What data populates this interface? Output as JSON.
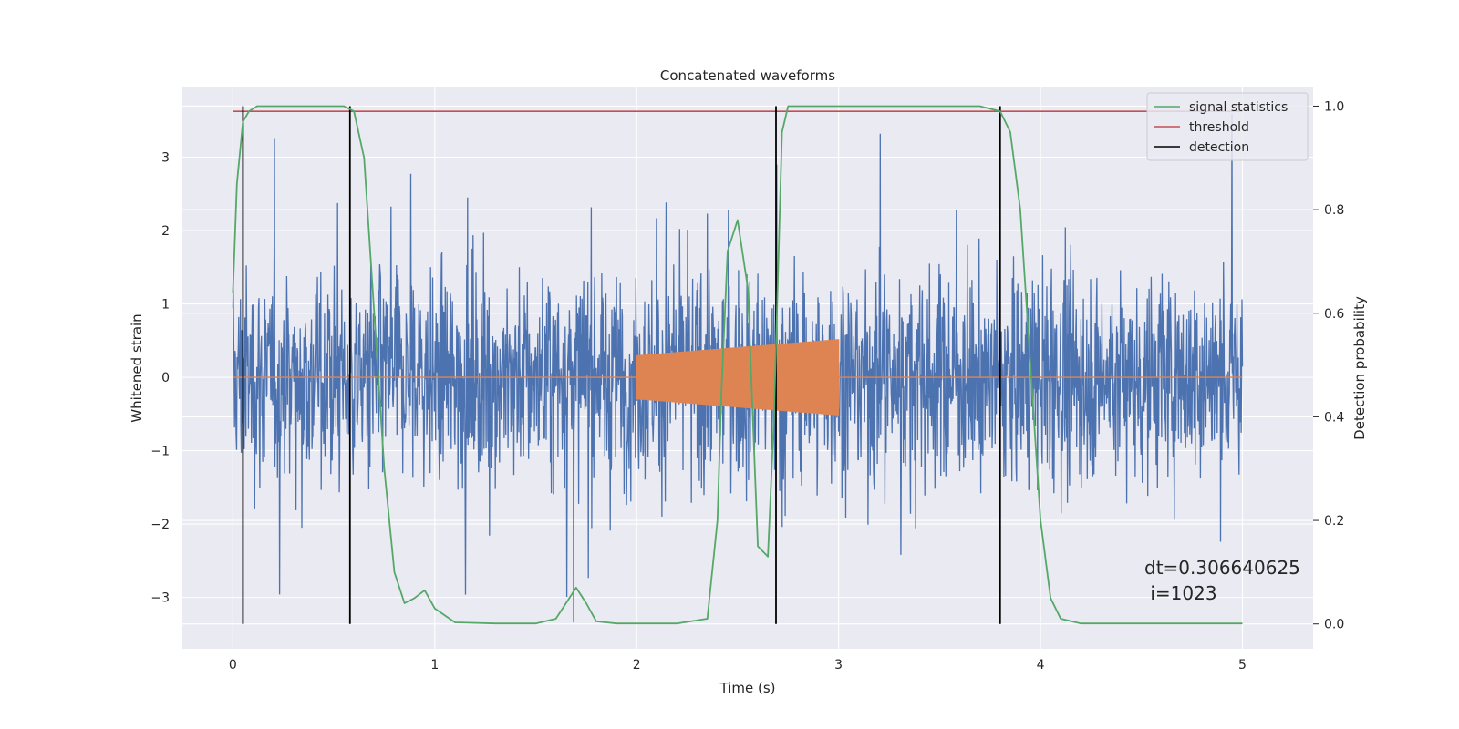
{
  "chart_data": {
    "type": "line",
    "title": "Concatenated waveforms",
    "xlabel": "Time (s)",
    "ylabel": "Whitened strain",
    "ylabel_right": "Detection probability",
    "xlim": [
      -0.25,
      5.35
    ],
    "ylim": [
      -3.7,
      3.95
    ],
    "ylim_right": [
      -0.048,
      1.036
    ],
    "x_ticks": [
      0,
      1,
      2,
      3,
      4,
      5
    ],
    "y_ticks": [
      -3,
      -2,
      -1,
      0,
      1,
      2,
      3
    ],
    "y_ticks_right": [
      0.0,
      0.2,
      0.4,
      0.6,
      0.8,
      1.0
    ],
    "grid": true,
    "legend_position": "top-right",
    "colors": {
      "strain": "#4c72b0",
      "injection": "#dd8452",
      "signal_statistics": "#55a868",
      "threshold": "#c44e52",
      "detection": "#000000",
      "background": "#eaeaf2"
    },
    "series": [
      {
        "name": "strain",
        "axis": "left",
        "x_range": [
          0,
          5
        ],
        "envelope_typical": [
          -1.3,
          1.3
        ],
        "envelope_peak": [
          -3.35,
          3.6
        ]
      },
      {
        "name": "injection",
        "axis": "left",
        "x_range": [
          0,
          5
        ],
        "segment_x": [
          2.0,
          3.0
        ],
        "amplitude_start": 0.3,
        "amplitude_end": 0.52
      },
      {
        "name": "signal statistics",
        "axis": "right",
        "x": [
          0.0,
          0.02,
          0.05,
          0.08,
          0.12,
          0.2,
          0.4,
          0.55,
          0.6,
          0.65,
          0.7,
          0.75,
          0.8,
          0.85,
          0.9,
          0.95,
          1.0,
          1.1,
          1.3,
          1.5,
          1.6,
          1.65,
          1.7,
          1.75,
          1.8,
          1.9,
          2.0,
          2.2,
          2.35,
          2.4,
          2.42,
          2.45,
          2.5,
          2.55,
          2.6,
          2.65,
          2.68,
          2.72,
          2.75,
          2.8,
          3.0,
          3.5,
          3.7,
          3.8,
          3.85,
          3.9,
          3.95,
          4.0,
          4.05,
          4.1,
          4.2,
          4.5,
          5.0
        ],
        "y": [
          0.64,
          0.85,
          0.97,
          0.99,
          1.0,
          1.0,
          1.0,
          1.0,
          0.99,
          0.9,
          0.6,
          0.3,
          0.1,
          0.04,
          0.05,
          0.065,
          0.03,
          0.003,
          0.001,
          0.001,
          0.01,
          0.04,
          0.07,
          0.04,
          0.005,
          0.001,
          0.001,
          0.001,
          0.01,
          0.2,
          0.45,
          0.72,
          0.78,
          0.65,
          0.15,
          0.13,
          0.4,
          0.95,
          1.0,
          1.0,
          1.0,
          1.0,
          1.0,
          0.99,
          0.95,
          0.8,
          0.5,
          0.2,
          0.05,
          0.01,
          0.001,
          0.001,
          0.001
        ]
      },
      {
        "name": "threshold",
        "axis": "right",
        "x": [
          0,
          5
        ],
        "y": [
          0.99,
          0.99
        ]
      },
      {
        "name": "detection",
        "axis": "right",
        "x_positions": [
          0.05,
          0.58,
          2.69,
          3.8
        ],
        "y_range": [
          0.0,
          1.0
        ]
      }
    ],
    "legend": [
      "signal statistics",
      "threshold",
      "detection"
    ],
    "annotation": {
      "line1": "dt=0.306640625",
      "line2": " i=1023"
    }
  }
}
